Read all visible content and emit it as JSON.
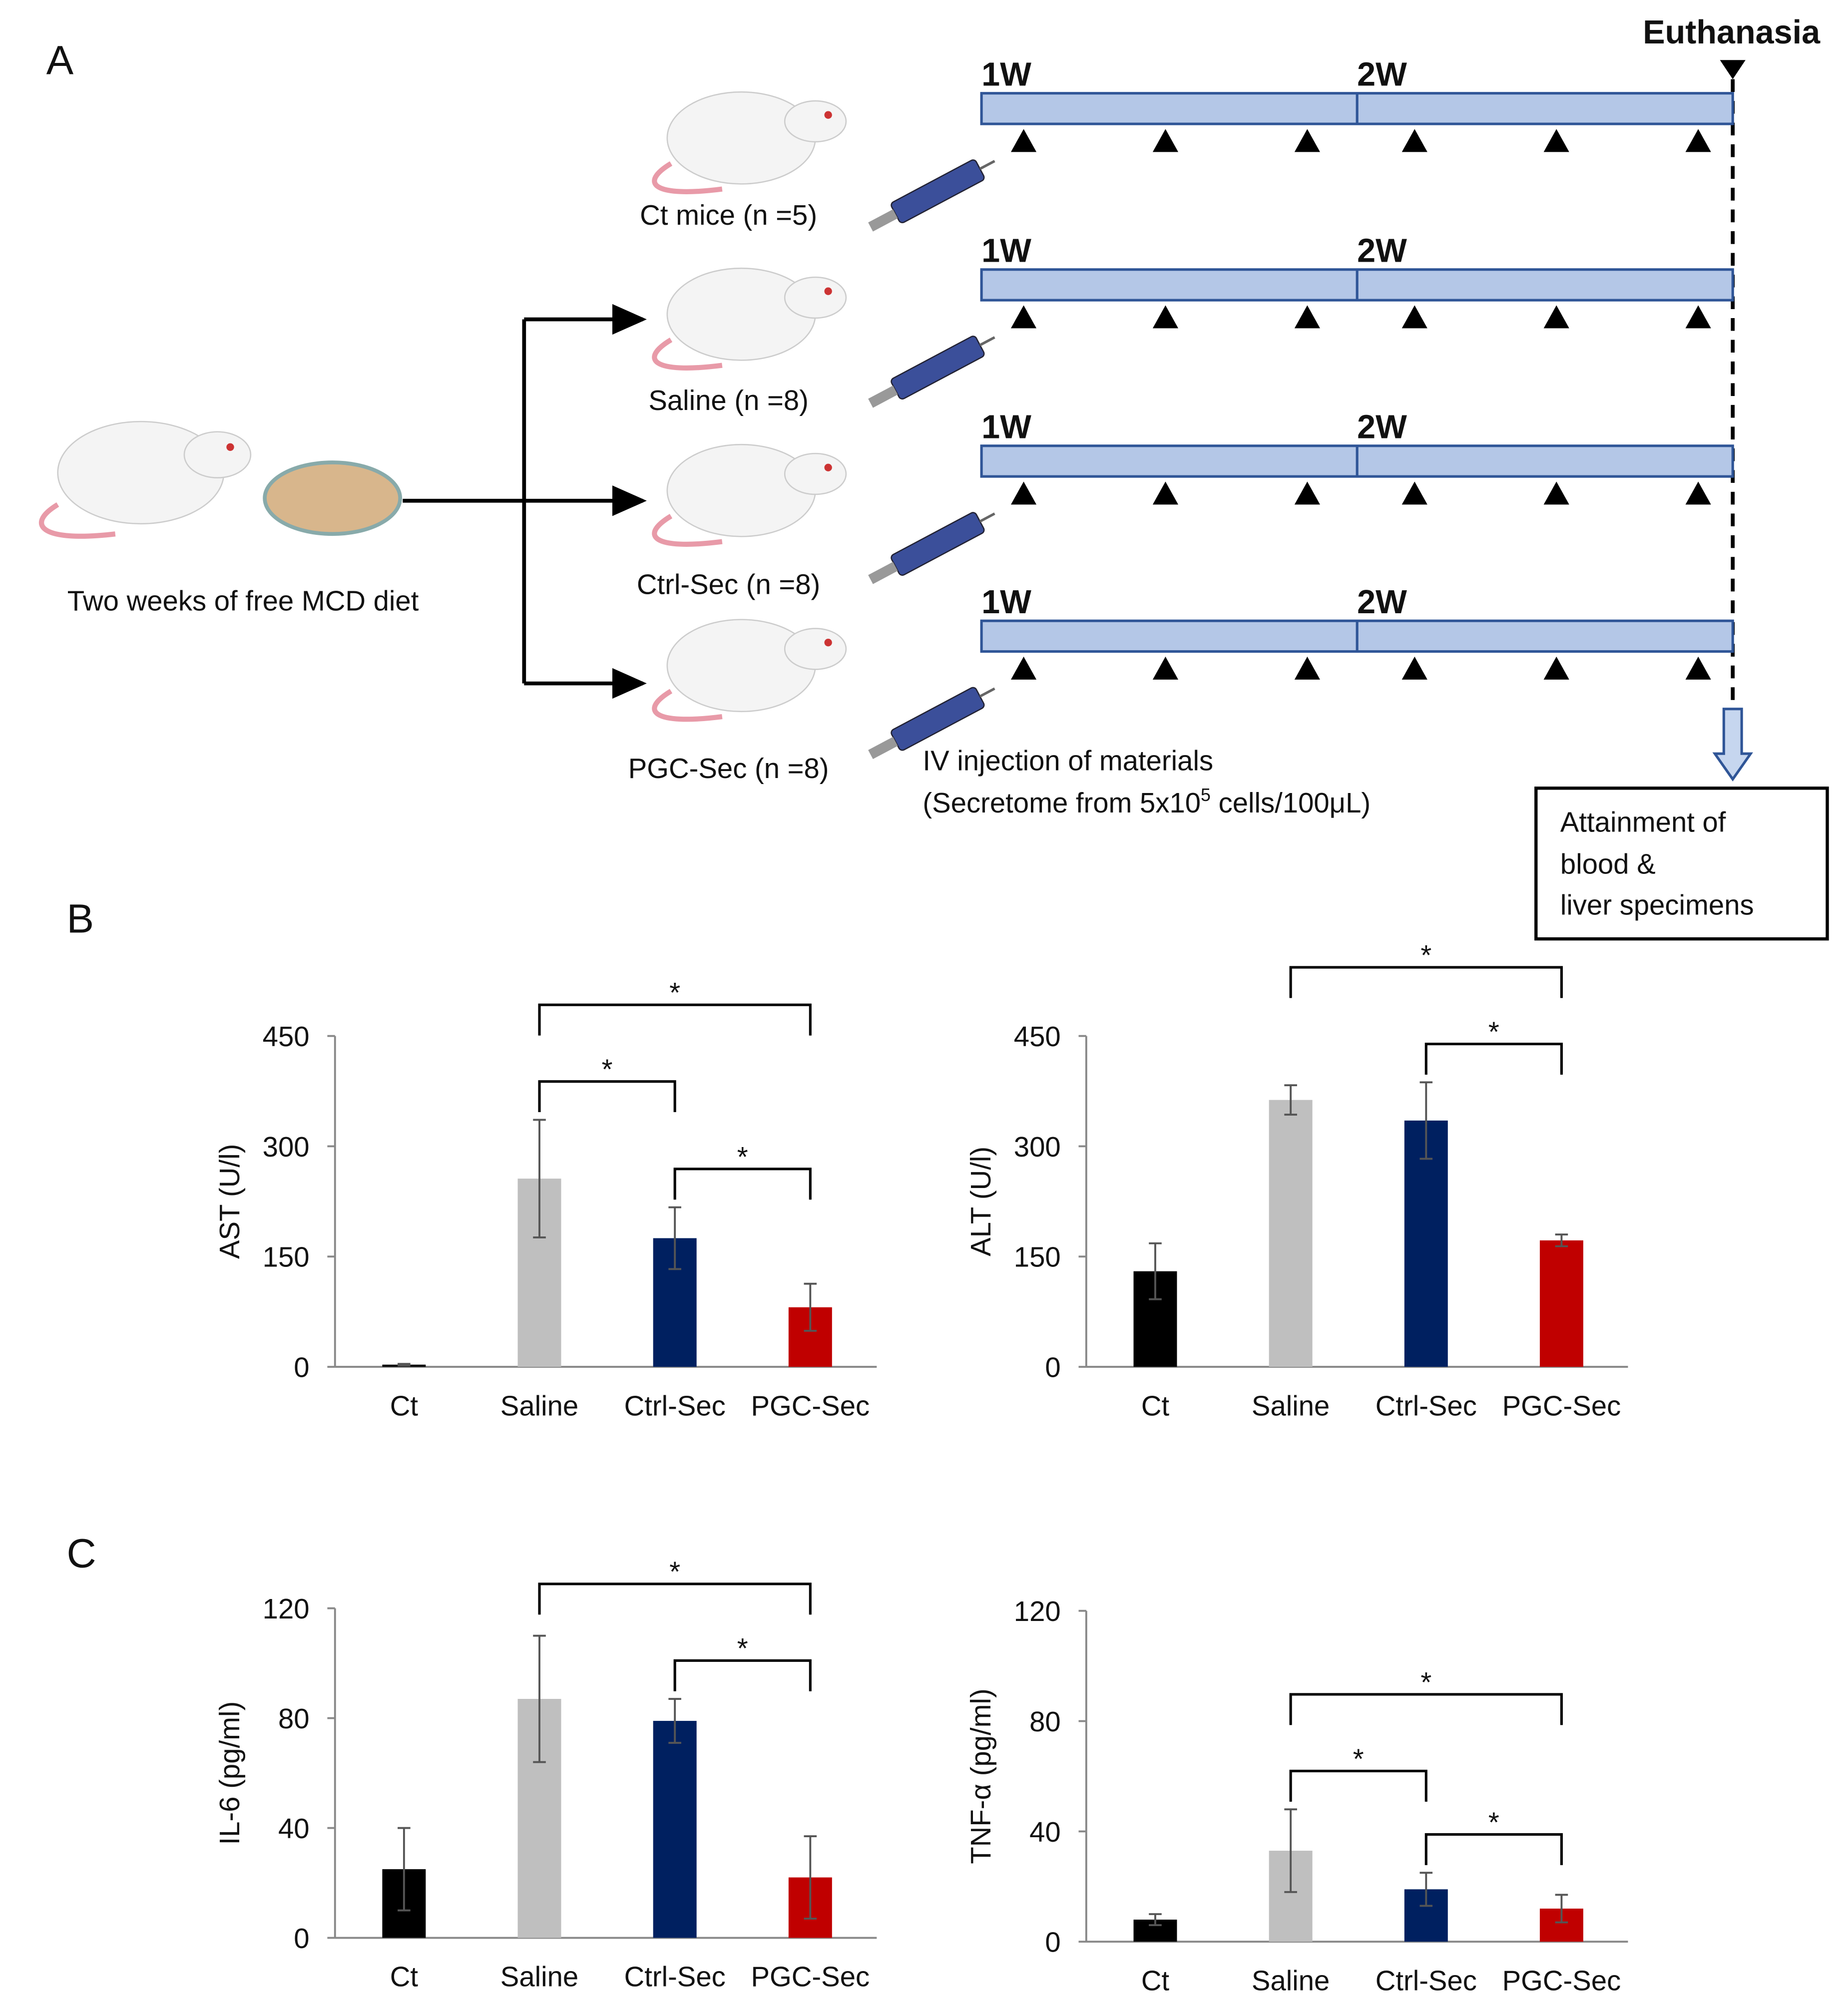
{
  "panels": [
    "A",
    "B",
    "C"
  ],
  "diagram": {
    "event": "Euthanasia",
    "weeks": [
      "1W",
      "2W"
    ],
    "groups": [
      "Ct mice (n =5)",
      "Saline (n =8)",
      "Ctrl-Sec (n =8)",
      "PGC-Sec (n =8)"
    ],
    "diet": "Two weeks of free MCD diet",
    "injection": [
      "IV injection of materials",
      "(Secretome from 5x10",
      "5",
      " cells/100μL)"
    ],
    "outcome": [
      "Attainment of",
      "blood &",
      "liver specimens"
    ]
  },
  "chart_data": [
    {
      "type": "bar",
      "ylabel": "AST (U/l)",
      "categories": [
        "Ct",
        "Saline",
        "Ctrl-Sec",
        "PGC-Sec"
      ],
      "values": [
        3,
        256,
        175,
        81
      ],
      "errors": [
        1,
        80,
        42,
        32
      ],
      "colors": [
        "#000000",
        "#bfbfbf",
        "#002060",
        "#c00000"
      ],
      "ylim": [
        0,
        450
      ],
      "yticks": [
        0,
        150,
        300,
        450
      ],
      "significance": [
        {
          "pair": [
            1,
            2
          ],
          "label": "*"
        },
        {
          "pair": [
            2,
            3
          ],
          "label": "*"
        },
        {
          "pair": [
            1,
            3
          ],
          "label": "*"
        }
      ]
    },
    {
      "type": "bar",
      "ylabel": "ALT (U/l)",
      "categories": [
        "Ct",
        "Saline",
        "Ctrl-Sec",
        "PGC-Sec"
      ],
      "values": [
        130,
        363,
        335,
        172
      ],
      "errors": [
        38,
        20,
        52,
        8
      ],
      "colors": [
        "#000000",
        "#bfbfbf",
        "#002060",
        "#c00000"
      ],
      "ylim": [
        0,
        450
      ],
      "yticks": [
        0,
        150,
        300,
        450
      ],
      "significance": [
        {
          "pair": [
            2,
            3
          ],
          "label": "*"
        },
        {
          "pair": [
            1,
            3
          ],
          "label": "*"
        }
      ]
    },
    {
      "type": "bar",
      "ylabel": "IL-6 (pg/ml)",
      "categories": [
        "Ct",
        "Saline",
        "Ctrl-Sec",
        "PGC-Sec"
      ],
      "values": [
        25,
        87,
        79,
        22
      ],
      "errors": [
        15,
        23,
        8,
        15
      ],
      "colors": [
        "#000000",
        "#bfbfbf",
        "#002060",
        "#c00000"
      ],
      "ylim": [
        0,
        120
      ],
      "yticks": [
        0,
        40,
        80,
        120
      ],
      "significance": [
        {
          "pair": [
            2,
            3
          ],
          "label": "*"
        },
        {
          "pair": [
            1,
            3
          ],
          "label": "*"
        }
      ]
    },
    {
      "type": "bar",
      "ylabel": "TNF-α (pg/ml)",
      "categories": [
        "Ct",
        "Saline",
        "Ctrl-Sec",
        "PGC-Sec"
      ],
      "values": [
        8,
        33,
        19,
        12
      ],
      "errors": [
        2,
        15,
        6,
        5
      ],
      "colors": [
        "#000000",
        "#bfbfbf",
        "#002060",
        "#c00000"
      ],
      "ylim": [
        0,
        120
      ],
      "yticks": [
        0,
        40,
        80,
        120
      ],
      "significance": [
        {
          "pair": [
            1,
            2
          ],
          "label": "*"
        },
        {
          "pair": [
            2,
            3
          ],
          "label": "*"
        },
        {
          "pair": [
            1,
            3
          ],
          "label": "*"
        }
      ]
    }
  ]
}
